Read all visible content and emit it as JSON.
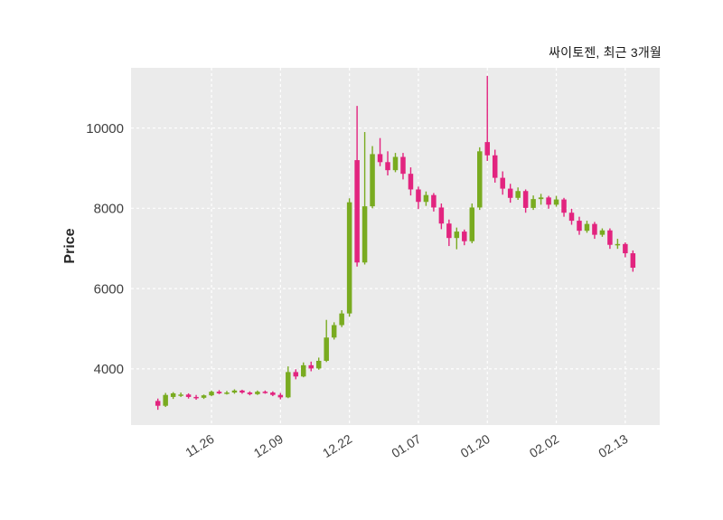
{
  "chart_data": {
    "type": "candlestick",
    "title": "싸이토젠, 최근 3개월",
    "title_position": "top-right",
    "xlabel": "",
    "ylabel": "Price",
    "ylim": [
      2600,
      11500
    ],
    "yticks": [
      4000,
      6000,
      8000,
      10000
    ],
    "xticks": {
      "indices": [
        7,
        16,
        25,
        34,
        43,
        52,
        61
      ],
      "labels": [
        "11.26",
        "12.09",
        "12.22",
        "01.07",
        "01.20",
        "02.02",
        "02.13"
      ]
    },
    "grid": "on",
    "colors": {
      "up": "#79ab20",
      "down": "#e2247f",
      "plot_bg": "#ebebeb",
      "grid": "#ffffff",
      "tick_text": "#404040",
      "title_text": "#1a1a1a"
    },
    "columns": [
      "open",
      "high",
      "low",
      "close"
    ],
    "candles": [
      [
        3200,
        3260,
        2980,
        3080
      ],
      [
        3080,
        3400,
        3050,
        3350
      ],
      [
        3300,
        3420,
        3250,
        3390
      ],
      [
        3350,
        3410,
        3300,
        3360
      ],
      [
        3360,
        3390,
        3260,
        3300
      ],
      [
        3300,
        3350,
        3230,
        3280
      ],
      [
        3280,
        3360,
        3250,
        3340
      ],
      [
        3340,
        3460,
        3320,
        3430
      ],
      [
        3430,
        3470,
        3370,
        3390
      ],
      [
        3400,
        3450,
        3360,
        3410
      ],
      [
        3410,
        3490,
        3380,
        3460
      ],
      [
        3460,
        3480,
        3380,
        3410
      ],
      [
        3410,
        3440,
        3340,
        3370
      ],
      [
        3370,
        3460,
        3350,
        3430
      ],
      [
        3430,
        3460,
        3380,
        3410
      ],
      [
        3410,
        3440,
        3320,
        3350
      ],
      [
        3350,
        3400,
        3240,
        3290
      ],
      [
        3290,
        4060,
        3270,
        3920
      ],
      [
        3920,
        3990,
        3740,
        3810
      ],
      [
        3810,
        4160,
        3790,
        4090
      ],
      [
        4090,
        4180,
        3940,
        4010
      ],
      [
        4010,
        4280,
        3980,
        4200
      ],
      [
        4200,
        5220,
        4170,
        4780
      ],
      [
        4780,
        5160,
        4730,
        5090
      ],
      [
        5090,
        5460,
        5040,
        5380
      ],
      [
        5380,
        8250,
        5300,
        8150
      ],
      [
        9200,
        10550,
        6550,
        6650
      ],
      [
        6650,
        9900,
        6600,
        8050
      ],
      [
        8050,
        9550,
        8000,
        9350
      ],
      [
        9350,
        9750,
        9050,
        9150
      ],
      [
        9150,
        9420,
        8820,
        8950
      ],
      [
        8950,
        9380,
        8900,
        9280
      ],
      [
        9280,
        9380,
        8720,
        8860
      ],
      [
        8860,
        9020,
        8320,
        8470
      ],
      [
        8470,
        8540,
        7980,
        8160
      ],
      [
        8160,
        8420,
        8060,
        8330
      ],
      [
        8330,
        8380,
        7920,
        8020
      ],
      [
        8020,
        8120,
        7480,
        7620
      ],
      [
        7620,
        7720,
        7060,
        7260
      ],
      [
        7260,
        7520,
        6980,
        7420
      ],
      [
        7420,
        7470,
        7080,
        7180
      ],
      [
        7180,
        8120,
        7130,
        8020
      ],
      [
        8020,
        9520,
        7960,
        9420
      ],
      [
        9650,
        11300,
        9180,
        9320
      ],
      [
        9320,
        9460,
        8640,
        8760
      ],
      [
        8760,
        8920,
        8340,
        8490
      ],
      [
        8490,
        8610,
        8140,
        8260
      ],
      [
        8260,
        8520,
        8210,
        8430
      ],
      [
        8430,
        8470,
        7890,
        8010
      ],
      [
        8010,
        8320,
        7960,
        8230
      ],
      [
        8230,
        8360,
        8090,
        8270
      ],
      [
        8270,
        8310,
        7990,
        8090
      ],
      [
        8090,
        8310,
        8040,
        8220
      ],
      [
        8220,
        8260,
        7790,
        7890
      ],
      [
        7890,
        7990,
        7590,
        7690
      ],
      [
        7690,
        7790,
        7340,
        7440
      ],
      [
        7440,
        7690,
        7390,
        7610
      ],
      [
        7610,
        7660,
        7240,
        7340
      ],
      [
        7340,
        7500,
        7290,
        7450
      ],
      [
        7450,
        7500,
        6990,
        7090
      ],
      [
        7090,
        7240,
        6990,
        7110
      ],
      [
        7110,
        7150,
        6780,
        6880
      ],
      [
        6880,
        6950,
        6420,
        6520
      ]
    ]
  }
}
